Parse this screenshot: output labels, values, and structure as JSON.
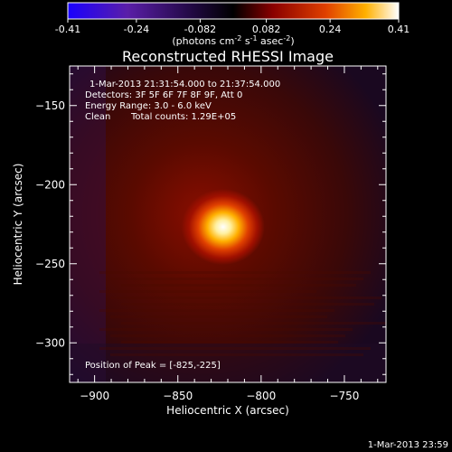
{
  "colorbar": {
    "ticks": [
      "-0.41",
      "-0.24",
      "-0.082",
      "0.082",
      "0.24",
      "0.41"
    ],
    "label_main": "(photons cm",
    "label_sup1": "-2",
    "label_mid": " s",
    "label_sup2": "-1",
    "label_mid2": " asec",
    "label_sup3": "-2",
    "label_end": ")",
    "range": [
      -0.41,
      0.41
    ]
  },
  "plot": {
    "title": "Reconstructed RHESSI Image",
    "info_time": "1-Mar-2013 21:31:54.000 to 21:37:54.000",
    "info_detectors": "Detectors: 3F 5F 6F 7F 8F 9F, Att 0",
    "info_energy": "Energy Range: 3.0 - 6.0 keV",
    "info_clean": "Clean",
    "info_counts": "Total counts: 1.29E+05",
    "peak_text": "Position of Peak = [-825,-225]",
    "footer_date": "1-Mar-2013 23:59"
  },
  "chart_data": {
    "type": "heatmap",
    "title": "Reconstructed RHESSI Image",
    "xlabel": "Heliocentric X (arcsec)",
    "ylabel": "Heliocentric Y (arcsec)",
    "xlim": [
      -915,
      -725
    ],
    "ylim": [
      -325,
      -125
    ],
    "xticks": [
      -900,
      -850,
      -800,
      -750
    ],
    "xtick_labels": [
      "−900",
      "−850",
      "−800",
      "−750"
    ],
    "yticks": [
      -150,
      -200,
      -250,
      -300
    ],
    "ytick_labels": [
      "−150",
      "−200",
      "−250",
      "−300"
    ],
    "peak": [
      -825,
      -225
    ],
    "colormap": "red-temperature",
    "colors": {
      "neg": "#2a14ff",
      "zero": "#000000",
      "pos_mid": "#d00000",
      "peak": "#ffffff"
    }
  }
}
